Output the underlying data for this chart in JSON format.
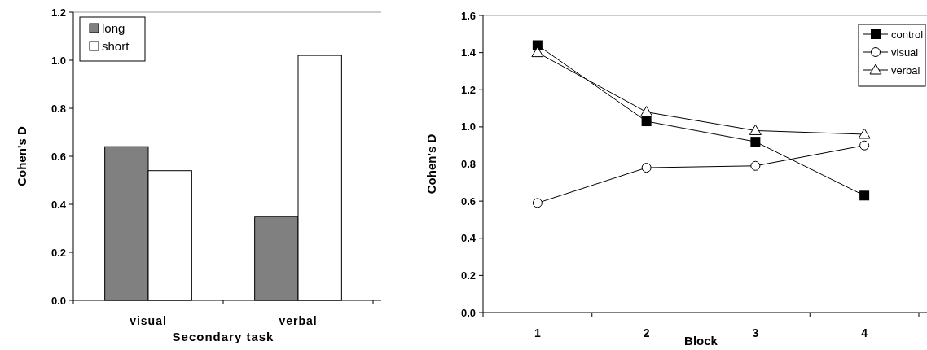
{
  "chart_data": [
    {
      "type": "bar",
      "xlabel": "Secondary task",
      "ylabel": "Cohen's D",
      "categories": [
        "visual",
        "verbal"
      ],
      "series": [
        {
          "name": "long",
          "color": "#808080",
          "values": [
            0.64,
            0.35
          ]
        },
        {
          "name": "short",
          "color": "#ffffff",
          "values": [
            0.54,
            1.02
          ]
        }
      ],
      "ylim": [
        0,
        1.2
      ],
      "yticks": [
        {
          "value": 0,
          "label": "0.0"
        },
        {
          "value": 0.2,
          "label": "0.2"
        },
        {
          "value": 0.4,
          "label": "0.4"
        },
        {
          "value": 0.6,
          "label": "0.6"
        },
        {
          "value": 0.8,
          "label": "0.8"
        },
        {
          "value": 1,
          "label": "1.0"
        },
        {
          "value": 1.2,
          "label": "1.2"
        }
      ],
      "grid": false,
      "legend": "top left"
    },
    {
      "type": "line",
      "xlabel": "Block",
      "ylabel": "Cohen's D",
      "categories": [
        "1",
        "2",
        "3",
        "4"
      ],
      "series": [
        {
          "name": "control",
          "color": "#000000",
          "values": [
            1.44,
            1.03,
            0.92,
            0.63
          ],
          "marker": "square"
        },
        {
          "name": "visual",
          "color": "#000000",
          "values": [
            0.59,
            0.78,
            0.79,
            0.9
          ],
          "marker": "circle"
        },
        {
          "name": "verbal",
          "color": "#000000",
          "values": [
            1.4,
            1.08,
            0.98,
            0.96
          ],
          "marker": "triangle"
        }
      ],
      "ylim": [
        0,
        1.6
      ],
      "yticks": [
        {
          "value": 0,
          "label": "0.0"
        },
        {
          "value": 0.2,
          "label": "0.2"
        },
        {
          "value": 0.4,
          "label": "0.4"
        },
        {
          "value": 0.6,
          "label": "0.6"
        },
        {
          "value": 0.8,
          "label": "0.8"
        },
        {
          "value": 1,
          "label": "1.0"
        },
        {
          "value": 1.2,
          "label": "1.2"
        },
        {
          "value": 1.4,
          "label": "1.4"
        },
        {
          "value": 1.6,
          "label": "1.6"
        }
      ],
      "grid": false,
      "legend": "top right"
    }
  ]
}
